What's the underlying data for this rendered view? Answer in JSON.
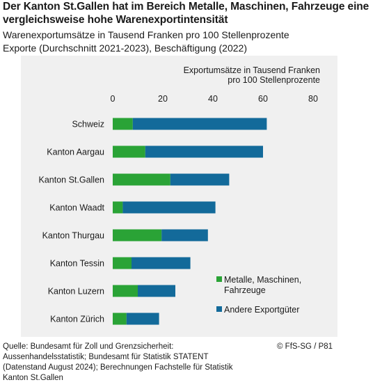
{
  "title": "Der Kanton St.Gallen hat im Bereich Metalle, Maschinen, Fahrzeuge eine vergleichsweise hohe Warenexportintensität",
  "subtitle_lines": [
    "Warenexportumsätze in Tausend Franken pro 100 Stellenprozente",
    "Exporte (Durchschnitt 2021-2023), Beschäftigung (2022)"
  ],
  "colors": {
    "metalle": "#2aa336",
    "andere": "#136a9a"
  },
  "chart_data": {
    "type": "bar",
    "orientation": "horizontal",
    "stacked": true,
    "axis_title_lines": [
      "Exportumsätze in Tausend Franken",
      "pro 100 Stellenprozente"
    ],
    "xlim": [
      0,
      80
    ],
    "xticks": [
      0,
      20,
      40,
      60,
      80
    ],
    "grid": false,
    "legend_position": "bottom-right",
    "categories": [
      "Schweiz",
      "Kanton Aargau",
      "Kanton St.Gallen",
      "Kanton Waadt",
      "Kanton Thurgau",
      "Kanton Tessin",
      "Kanton Luzern",
      "Kanton Zürich"
    ],
    "series": [
      {
        "name": "Metalle, Maschinen, Fahrzeuge",
        "legend_lines": [
          "Metalle, Maschinen,",
          "Fahrzeuge"
        ],
        "color": "#2aa336",
        "values": [
          8,
          13,
          23,
          4,
          19.5,
          7.5,
          10,
          5.5
        ]
      },
      {
        "name": "Andere Exportgüter",
        "legend_lines": [
          "Andere Exportgüter"
        ],
        "color": "#136a9a",
        "values": [
          53.5,
          47,
          23.5,
          37,
          18.5,
          23.5,
          15,
          13
        ]
      }
    ]
  },
  "footer": {
    "source_lines": [
      "Quelle: Bundesamt für Zoll und Grenzsicherheit:",
      "Aussenhandelsstatistik; Bundesamt für Statistik STATENT",
      "(Datenstand August 2024); Berechnungen Fachstelle für Statistik",
      "Kanton St.Gallen"
    ],
    "credit": "© FfS-SG / P81"
  }
}
